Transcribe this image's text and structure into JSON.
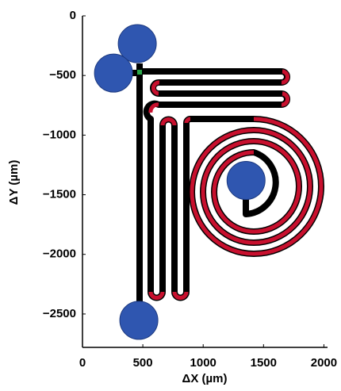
{
  "chart_data": {
    "type": "scatter",
    "xlabel": "ΔX (µm)",
    "ylabel": "ΔY (µm)",
    "x": [
      454,
      257,
      467,
      1355
    ],
    "y": [
      -233,
      -480,
      -2553,
      -1380
    ],
    "color": "#2f56b0",
    "xlim": [
      0,
      2030
    ],
    "ylim": [
      -2780,
      0
    ],
    "xticks": [
      0,
      500,
      1000,
      1500,
      2000
    ],
    "yticks": [
      0,
      {
        "value": -500,
        "label": "−500"
      },
      {
        "value": -1000,
        "label": "−1000"
      },
      {
        "value": -1500,
        "label": "−1500"
      },
      {
        "value": -2000,
        "label": "−2000"
      },
      {
        "value": -2500,
        "label": "−2500"
      }
    ],
    "grid": false
  }
}
